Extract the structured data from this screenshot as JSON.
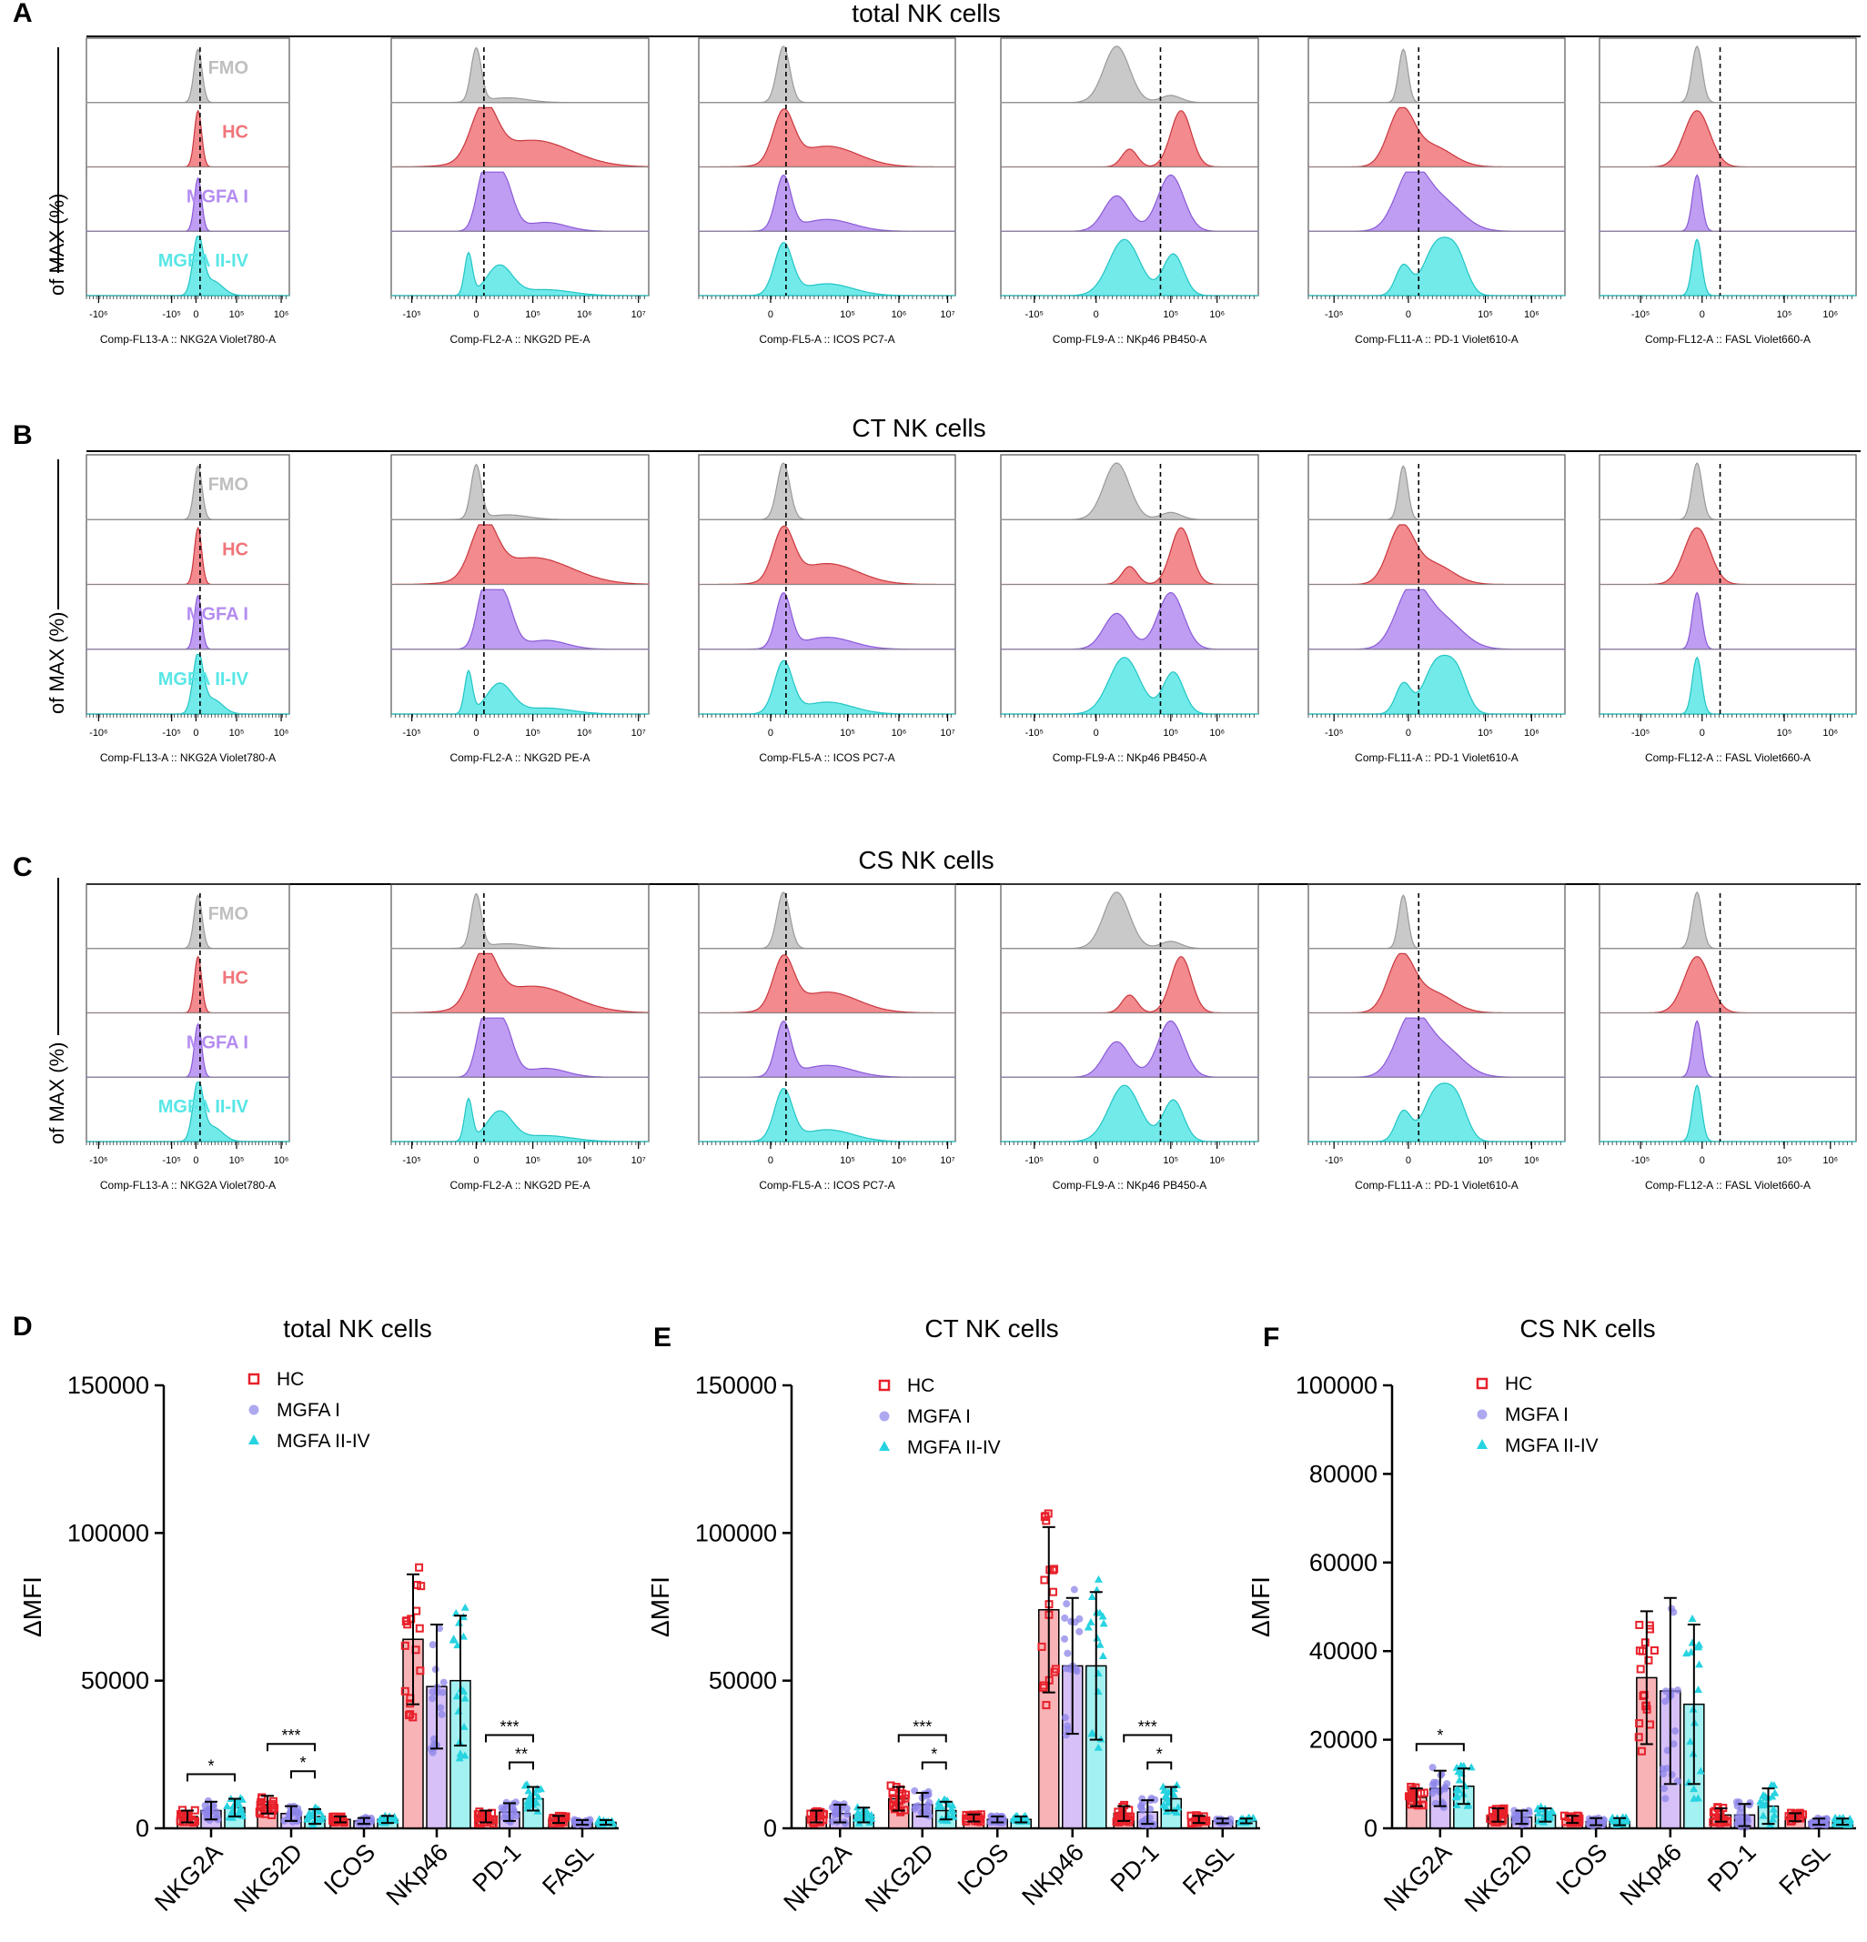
{
  "colors": {
    "fmo": "#bfbfbf",
    "hc": "#f0757a",
    "mgfa1": "#b48cf0",
    "mgfa2": "#59e6e6",
    "hc_point": "#e8212b",
    "mgfa1_point": "#8c84e8",
    "mgfa2_point": "#27d3e0",
    "dash": "#000000"
  },
  "flow_panels": [
    {
      "letter": "A",
      "title": "total NK cells"
    },
    {
      "letter": "B",
      "title": "CT NK cells"
    },
    {
      "letter": "C",
      "title": "CS NK cells"
    }
  ],
  "flow_ylabel": "of MAX (%)",
  "row_labels": [
    "FMO",
    "HC",
    "MGFA I",
    "MGFA II-IV"
  ],
  "flow_axes": [
    {
      "xlabel": "Comp-FL13-A :: NKG2A Violet780-A",
      "ticks": [
        "-10⁶",
        "-10⁵",
        "0",
        "10⁵",
        "10⁶"
      ],
      "tick_pos": [
        0.06,
        0.42,
        0.54,
        0.74,
        0.96
      ]
    },
    {
      "xlabel": "Comp-FL2-A :: NKG2D PE-A",
      "ticks": [
        "-10⁵",
        "0",
        "10⁵",
        "10⁶",
        "10⁷"
      ],
      "tick_pos": [
        0.08,
        0.33,
        0.55,
        0.75,
        0.96
      ]
    },
    {
      "xlabel": "Comp-FL5-A :: ICOS PC7-A",
      "ticks": [
        "0",
        "10⁵",
        "10⁶",
        "10⁷"
      ],
      "tick_pos": [
        0.28,
        0.58,
        0.78,
        0.97
      ]
    },
    {
      "xlabel": "Comp-FL9-A :: NKp46 PB450-A",
      "ticks": [
        "-10⁵",
        "0",
        "10⁵",
        "10⁶"
      ],
      "tick_pos": [
        0.13,
        0.37,
        0.66,
        0.84
      ]
    },
    {
      "xlabel": "Comp-FL11-A :: PD-1 Violet610-A",
      "ticks": [
        "-10⁵",
        "0",
        "10⁵",
        "10⁶"
      ],
      "tick_pos": [
        0.1,
        0.39,
        0.69,
        0.87
      ]
    },
    {
      "xlabel": "Comp-FL12-A :: FASL Violet660-A",
      "ticks": [
        "-10⁵",
        "0",
        "10⁵",
        "10⁶"
      ],
      "tick_pos": [
        0.16,
        0.4,
        0.72,
        0.9
      ]
    }
  ],
  "bar_markers": [
    "NKG2A",
    "NKG2D",
    "ICOS",
    "NKp46",
    "PD-1",
    "FASL"
  ],
  "legend": [
    "HC",
    "MGFA I",
    "MGFA II-IV"
  ],
  "chart_data": [
    {
      "type": "bar",
      "letter": "D",
      "title": "total NK cells",
      "ylabel": "ΔMFI",
      "ylim": [
        0,
        150000
      ],
      "yticks": [
        0,
        50000,
        100000,
        150000
      ],
      "categories": [
        "NKG2A",
        "NKG2D",
        "ICOS",
        "NKp46",
        "PD-1",
        "FASL"
      ],
      "series": [
        {
          "name": "HC",
          "values": [
            4000,
            8000,
            3000,
            64000,
            4000,
            3000
          ],
          "sd": [
            2000,
            3000,
            1000,
            22000,
            2000,
            1200
          ]
        },
        {
          "name": "MGFA I",
          "values": [
            6000,
            5000,
            2500,
            48000,
            5500,
            2000
          ],
          "sd": [
            3000,
            2500,
            1000,
            21000,
            3000,
            800
          ]
        },
        {
          "name": "MGFA II-IV",
          "values": [
            7000,
            4000,
            3000,
            50000,
            10000,
            2000
          ],
          "sd": [
            3000,
            2500,
            1200,
            22000,
            4000,
            800
          ]
        }
      ],
      "significance": [
        {
          "cat": "NKG2A",
          "from": 0,
          "to": 2,
          "label": "*"
        },
        {
          "cat": "NKG2D",
          "from": 0,
          "to": 2,
          "label": "***"
        },
        {
          "cat": "NKG2D",
          "from": 1,
          "to": 2,
          "label": "*"
        },
        {
          "cat": "PD-1",
          "from": 0,
          "to": 2,
          "label": "***"
        },
        {
          "cat": "PD-1",
          "from": 1,
          "to": 2,
          "label": "**"
        }
      ]
    },
    {
      "type": "bar",
      "letter": "E",
      "title": "CT NK cells",
      "ylabel": "ΔMFI",
      "ylim": [
        0,
        150000
      ],
      "yticks": [
        0,
        50000,
        100000,
        150000
      ],
      "categories": [
        "NKG2A",
        "NKG2D",
        "ICOS",
        "NKp46",
        "PD-1",
        "FASL"
      ],
      "series": [
        {
          "name": "HC",
          "values": [
            4000,
            10000,
            3500,
            74000,
            5000,
            3000
          ],
          "sd": [
            2000,
            4000,
            1200,
            28000,
            2500,
            1200
          ]
        },
        {
          "name": "MGFA I",
          "values": [
            5000,
            8000,
            3000,
            55000,
            5500,
            2500
          ],
          "sd": [
            3000,
            4000,
            1000,
            23000,
            4000,
            800
          ]
        },
        {
          "name": "MGFA II-IV",
          "values": [
            4500,
            6000,
            3000,
            55000,
            10000,
            2500
          ],
          "sd": [
            2500,
            3000,
            1000,
            25000,
            4000,
            800
          ]
        }
      ],
      "significance": [
        {
          "cat": "NKG2D",
          "from": 0,
          "to": 2,
          "label": "***"
        },
        {
          "cat": "NKG2D",
          "from": 1,
          "to": 2,
          "label": "*"
        },
        {
          "cat": "PD-1",
          "from": 0,
          "to": 2,
          "label": "***"
        },
        {
          "cat": "PD-1",
          "from": 1,
          "to": 2,
          "label": "*"
        }
      ]
    },
    {
      "type": "bar",
      "letter": "F",
      "title": "CS NK cells",
      "ylabel": "ΔMFI",
      "ylim": [
        0,
        100000
      ],
      "yticks": [
        0,
        20000,
        40000,
        60000,
        80000,
        100000
      ],
      "categories": [
        "NKG2A",
        "NKG2D",
        "ICOS",
        "NKp46",
        "PD-1",
        "FASL"
      ],
      "series": [
        {
          "name": "HC",
          "values": [
            7000,
            3000,
            2000,
            34000,
            3000,
            2500
          ],
          "sd": [
            2000,
            1500,
            800,
            15000,
            1500,
            900
          ]
        },
        {
          "name": "MGFA I",
          "values": [
            9000,
            2500,
            1500,
            31000,
            3000,
            1500
          ],
          "sd": [
            4000,
            1500,
            800,
            21000,
            2500,
            700
          ]
        },
        {
          "name": "MGFA II-IV",
          "values": [
            9500,
            3000,
            1500,
            28000,
            5000,
            1500
          ],
          "sd": [
            4000,
            1500,
            800,
            18000,
            4000,
            700
          ]
        }
      ],
      "significance": [
        {
          "cat": "NKG2A",
          "from": 0,
          "to": 2,
          "label": "*"
        }
      ]
    }
  ]
}
